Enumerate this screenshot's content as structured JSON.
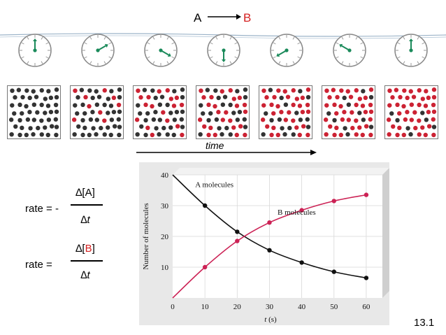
{
  "reaction": {
    "reactant": "A",
    "product": "B",
    "product_color": "#d42020"
  },
  "colors": {
    "molecule_a": "#333333",
    "molecule_b": "#cc2233",
    "clock_hand": "#1a8a5a"
  },
  "snapshots": [
    {
      "index": 0,
      "fraction_b": 0.0
    },
    {
      "index": 1,
      "fraction_b": 0.18
    },
    {
      "index": 2,
      "fraction_b": 0.36
    },
    {
      "index": 3,
      "fraction_b": 0.5
    },
    {
      "index": 4,
      "fraction_b": 0.65
    },
    {
      "index": 5,
      "fraction_b": 0.78
    },
    {
      "index": 6,
      "fraction_b": 0.85
    }
  ],
  "time_axis_label": "time",
  "equations": {
    "rate1_lhs": "rate = -",
    "rate1_num": "∆[A]",
    "rate1_den": "∆t",
    "rate2_lhs": "rate =",
    "rate2_num_prefix": "∆[",
    "rate2_num_species": "B",
    "rate2_num_suffix": "]",
    "rate2_den": "∆t"
  },
  "slide_number": "13.1",
  "chart_data": {
    "type": "line",
    "xlabel": "t (s)",
    "ylabel": "Number of molecules",
    "xlim": [
      0,
      65
    ],
    "ylim": [
      0,
      40
    ],
    "x_ticks": [
      0,
      10,
      20,
      30,
      40,
      50,
      60
    ],
    "y_ticks": [
      10,
      20,
      30,
      40
    ],
    "grid": true,
    "series": [
      {
        "name": "A molecules",
        "color": "#111111",
        "x": [
          0,
          10,
          20,
          30,
          40,
          50,
          60
        ],
        "y": [
          40,
          30,
          21.5,
          15.5,
          11.5,
          8.5,
          6.5
        ]
      },
      {
        "name": "B molecules",
        "color": "#cc2255",
        "x": [
          0,
          10,
          20,
          30,
          40,
          50,
          60
        ],
        "y": [
          0,
          10,
          18.5,
          24.5,
          28.5,
          31.5,
          33.5
        ]
      }
    ]
  }
}
